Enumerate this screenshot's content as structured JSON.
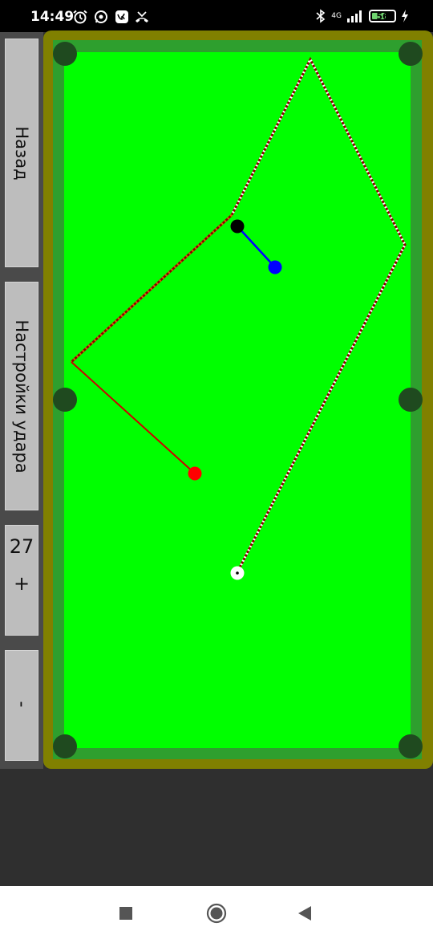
{
  "status_bar": {
    "time": "14:49",
    "icons_left": [
      "alarm-icon",
      "whatsapp-icon",
      "vk-icon",
      "missed-call-icon"
    ],
    "network": "4G",
    "battery": "56",
    "icons_right": [
      "bluetooth-icon",
      "signal-icon",
      "charging-icon"
    ]
  },
  "sidebar": {
    "back_label": "Назад",
    "settings_label": "Настройки удара",
    "counter_value": "27",
    "plus_label": "+",
    "minus_label": "-"
  },
  "table": {
    "cloth_color": "#00ff00",
    "cushion_color": "#2e9f2e",
    "rail_color": "#808000",
    "pocket_color": "#1f4a1f",
    "balls": [
      {
        "name": "cue-ball",
        "color": "#ffffff"
      },
      {
        "name": "black-ball",
        "color": "#000000"
      },
      {
        "name": "blue-ball",
        "color": "#0000ff"
      },
      {
        "name": "red-ball",
        "color": "#ff0000"
      }
    ],
    "aim_line_colors": [
      "#8b0000",
      "#ffffff",
      "#cc0000",
      "#0000ff"
    ]
  },
  "nav_bar": {
    "buttons": [
      "recent-apps-button",
      "home-button",
      "back-button"
    ]
  }
}
